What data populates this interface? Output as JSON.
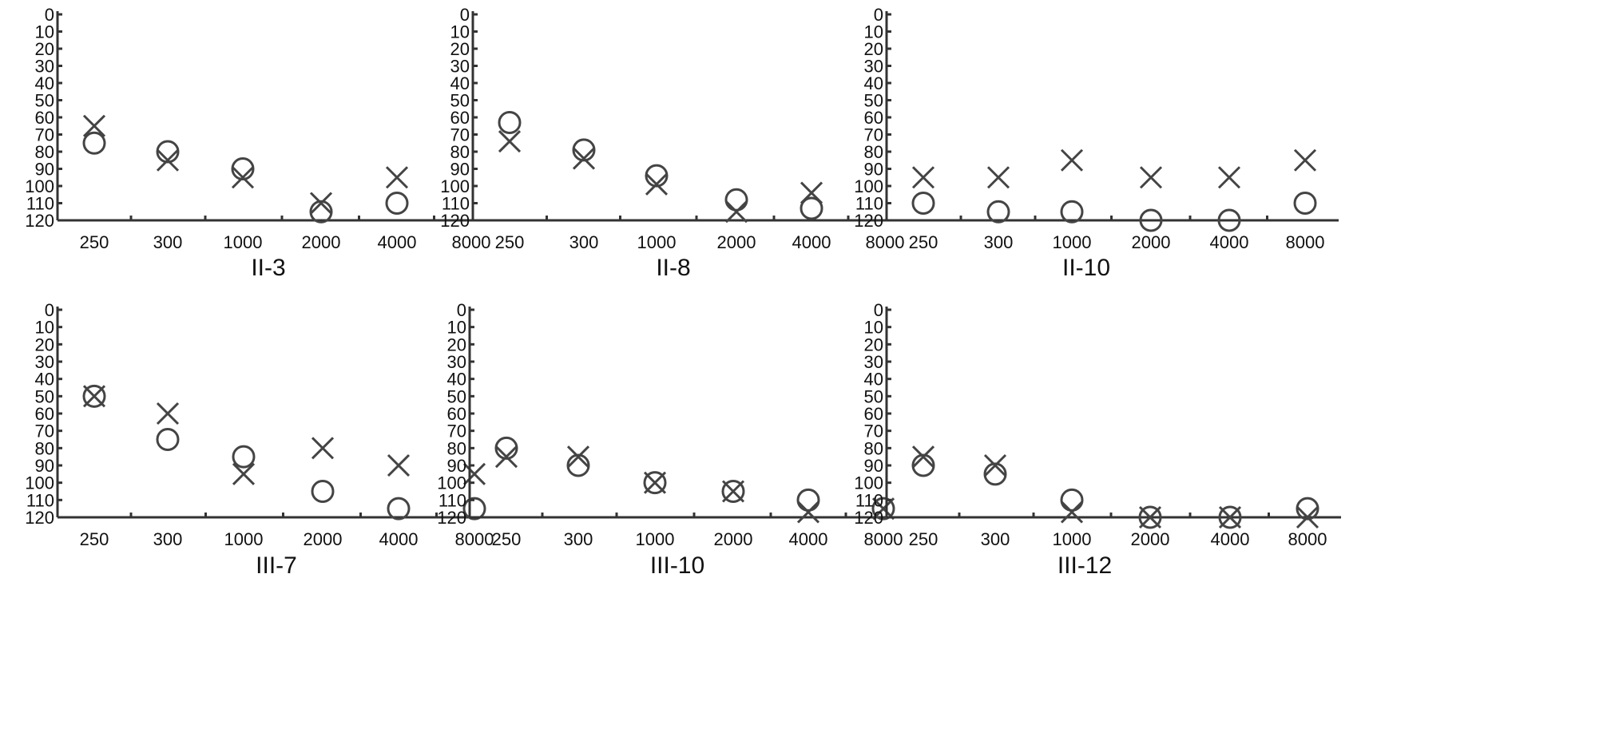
{
  "chart_data": [
    {
      "type": "scatter",
      "title": "II-3",
      "categories": [
        "250",
        "300",
        "1000",
        "2000",
        "4000",
        "8000"
      ],
      "yticks": [
        0,
        10,
        20,
        30,
        40,
        50,
        60,
        70,
        80,
        90,
        100,
        110,
        120
      ],
      "ylim": [
        0,
        120
      ],
      "y_inverted": true,
      "series": [
        {
          "marker": "circle",
          "values": [
            75,
            80,
            90,
            115,
            110,
            null
          ]
        },
        {
          "marker": "cross",
          "values": [
            65,
            85,
            95,
            110,
            95,
            null
          ]
        }
      ]
    },
    {
      "type": "scatter",
      "title": "II-8",
      "categories": [
        "250",
        "300",
        "1000",
        "2000",
        "4000",
        "8000"
      ],
      "yticks": [
        0,
        10,
        20,
        30,
        40,
        50,
        60,
        70,
        80,
        90,
        100,
        110,
        120
      ],
      "ylim": [
        0,
        120
      ],
      "y_inverted": true,
      "series": [
        {
          "marker": "circle",
          "values": [
            63,
            79,
            94,
            108,
            113,
            null
          ]
        },
        {
          "marker": "cross",
          "values": [
            74,
            84,
            99,
            115,
            104,
            null
          ]
        }
      ]
    },
    {
      "type": "scatter",
      "title": "II-10",
      "categories": [
        "250",
        "300",
        "1000",
        "2000",
        "4000",
        "8000"
      ],
      "yticks": [
        0,
        10,
        20,
        30,
        40,
        50,
        60,
        70,
        80,
        90,
        100,
        110,
        120
      ],
      "ylim": [
        0,
        120
      ],
      "y_inverted": true,
      "series": [
        {
          "marker": "circle",
          "values": [
            110,
            115,
            115,
            120,
            120,
            110
          ]
        },
        {
          "marker": "cross",
          "values": [
            95,
            95,
            85,
            95,
            95,
            85
          ]
        }
      ]
    },
    {
      "type": "scatter",
      "title": "III-7",
      "categories": [
        "250",
        "300",
        "1000",
        "2000",
        "4000",
        "8000"
      ],
      "yticks": [
        0,
        10,
        20,
        30,
        40,
        50,
        60,
        70,
        80,
        90,
        100,
        110,
        120
      ],
      "ylim": [
        0,
        120
      ],
      "y_inverted": true,
      "series": [
        {
          "marker": "circle",
          "values": [
            50,
            75,
            85,
            105,
            115,
            115
          ]
        },
        {
          "marker": "cross",
          "values": [
            50,
            60,
            95,
            80,
            90,
            95
          ]
        }
      ]
    },
    {
      "type": "scatter",
      "title": "III-10",
      "categories": [
        "250",
        "300",
        "1000",
        "2000",
        "4000",
        "8000"
      ],
      "yticks": [
        0,
        10,
        20,
        30,
        40,
        50,
        60,
        70,
        80,
        90,
        100,
        110,
        120
      ],
      "ylim": [
        0,
        120
      ],
      "y_inverted": true,
      "series": [
        {
          "marker": "circle",
          "values": [
            80,
            90,
            100,
            105,
            110,
            115
          ]
        },
        {
          "marker": "cross",
          "values": [
            85,
            85,
            100,
            105,
            117,
            115
          ]
        }
      ]
    },
    {
      "type": "scatter",
      "title": "III-12",
      "categories": [
        "250",
        "300",
        "1000",
        "2000",
        "4000",
        "8000"
      ],
      "yticks": [
        0,
        10,
        20,
        30,
        40,
        50,
        60,
        70,
        80,
        90,
        100,
        110,
        120
      ],
      "ylim": [
        0,
        120
      ],
      "y_inverted": true,
      "series": [
        {
          "marker": "circle",
          "values": [
            90,
            95,
            110,
            120,
            120,
            115
          ]
        },
        {
          "marker": "cross",
          "values": [
            85,
            90,
            117,
            120,
            120,
            120
          ]
        }
      ]
    }
  ]
}
